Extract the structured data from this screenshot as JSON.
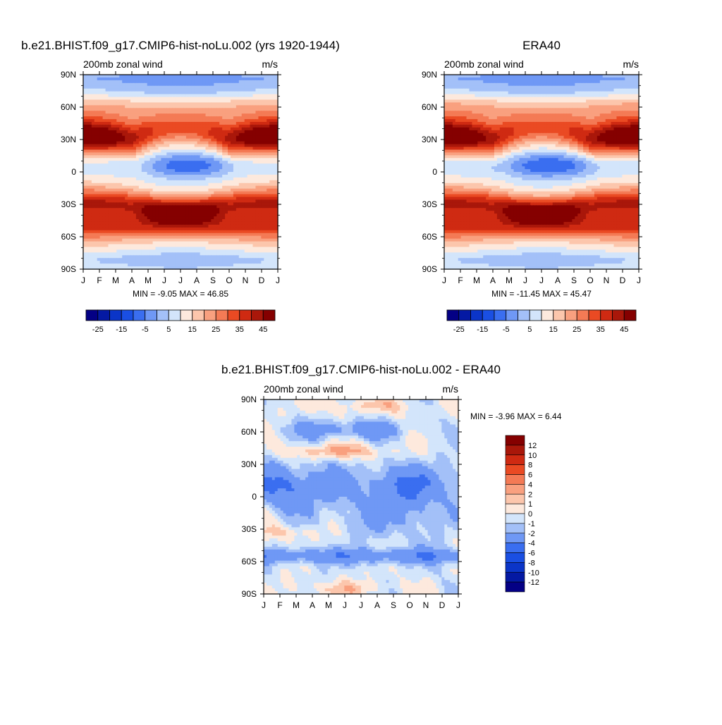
{
  "chart_data": [
    {
      "type": "heatmap",
      "title": "b.e21.BHIST.f09_g17.CMIP6-hist-noLu.002 (yrs 1920-1944)",
      "left_label": "200mb zonal wind",
      "right_label": "m/s",
      "x_ticks": [
        "J",
        "F",
        "M",
        "A",
        "M",
        "J",
        "J",
        "A",
        "S",
        "O",
        "N",
        "D",
        "J"
      ],
      "y_ticks": [
        "90N",
        "60N",
        "30N",
        "0",
        "30S",
        "60S",
        "90S"
      ],
      "min_max_text": "MIN =  -9.05 MAX =  46.85",
      "levels": [
        -30,
        -25,
        -20,
        -15,
        -10,
        -5,
        0,
        5,
        10,
        15,
        20,
        25,
        30,
        35,
        40,
        45
      ],
      "colorbar_labels": [
        "-25",
        "-15",
        "-5",
        "5",
        "15",
        "25",
        "35",
        "45"
      ],
      "colors": [
        "#040085",
        "#0419a3",
        "#0b35c8",
        "#1a4fe3",
        "#3a6ef0",
        "#6f98f5",
        "#a3c0f8",
        "#d3e5fb",
        "#fde9dd",
        "#fcc6ac",
        "#f9a07f",
        "#f47a55",
        "#ea4a23",
        "#cf2a12",
        "#a9170a",
        "#850000"
      ]
    },
    {
      "type": "heatmap",
      "title": "ERA40",
      "left_label": "200mb zonal wind",
      "right_label": "m/s",
      "x_ticks": [
        "J",
        "F",
        "M",
        "A",
        "M",
        "J",
        "J",
        "A",
        "S",
        "O",
        "N",
        "D",
        "J"
      ],
      "y_ticks": [
        "90N",
        "60N",
        "30N",
        "0",
        "30S",
        "60S",
        "90S"
      ],
      "min_max_text": "MIN = -11.45 MAX =  45.47",
      "levels": [
        -30,
        -25,
        -20,
        -15,
        -10,
        -5,
        0,
        5,
        10,
        15,
        20,
        25,
        30,
        35,
        40,
        45
      ],
      "colorbar_labels": [
        "-25",
        "-15",
        "-5",
        "5",
        "15",
        "25",
        "35",
        "45"
      ],
      "colors": [
        "#040085",
        "#0419a3",
        "#0b35c8",
        "#1a4fe3",
        "#3a6ef0",
        "#6f98f5",
        "#a3c0f8",
        "#d3e5fb",
        "#fde9dd",
        "#fcc6ac",
        "#f9a07f",
        "#f47a55",
        "#ea4a23",
        "#cf2a12",
        "#a9170a",
        "#850000"
      ]
    },
    {
      "type": "heatmap",
      "title": "b.e21.BHIST.f09_g17.CMIP6-hist-noLu.002 - ERA40",
      "left_label": "200mb zonal wind",
      "right_label": "m/s",
      "x_ticks": [
        "J",
        "F",
        "M",
        "A",
        "M",
        "J",
        "J",
        "A",
        "S",
        "O",
        "N",
        "D",
        "J"
      ],
      "y_ticks": [
        "90N",
        "60N",
        "30N",
        "0",
        "30S",
        "60S",
        "90S"
      ],
      "min_max_text": "MIN =  -3.96 MAX =   6.44",
      "levels": [
        -12,
        -10,
        -8,
        -6,
        -4,
        -2,
        -1,
        0,
        1,
        2,
        4,
        6,
        8,
        10,
        12
      ],
      "colorbar_labels": [
        "12",
        "10",
        "8",
        "6",
        "4",
        "2",
        "1",
        "0",
        "-1",
        "-2",
        "-4",
        "-6",
        "-8",
        "-10",
        "-12"
      ],
      "colors": [
        "#850000",
        "#a9170a",
        "#cf2a12",
        "#ea4a23",
        "#f47a55",
        "#f9a07f",
        "#fcc6ac",
        "#fde9dd",
        "#d3e5fb",
        "#a3c0f8",
        "#6f98f5",
        "#3a6ef0",
        "#1a4fe3",
        "#0b35c8",
        "#0419a3",
        "#040085"
      ]
    }
  ]
}
